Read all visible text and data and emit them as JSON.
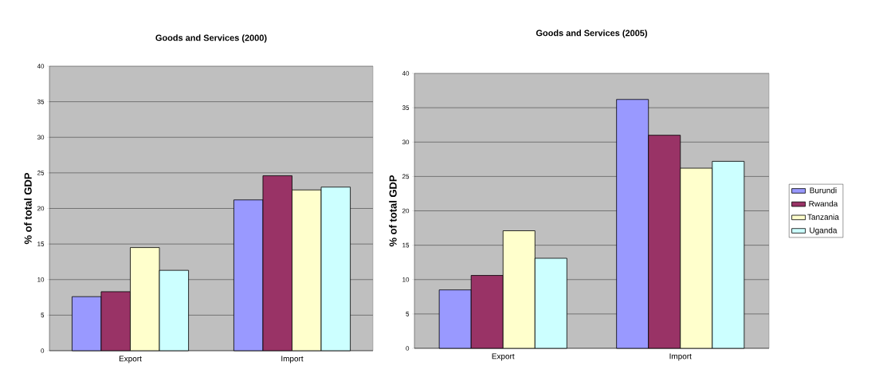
{
  "chart_data": [
    {
      "type": "bar",
      "title": "Goods and Services (2000)",
      "ylabel": "% of total GDP",
      "categories": [
        "Export",
        "Import"
      ],
      "series": [
        {
          "color": "#9999ff",
          "values": [
            7.6,
            21.2
          ]
        },
        {
          "color": "#993366",
          "values": [
            8.3,
            24.6
          ]
        },
        {
          "color": "#ffffcc",
          "values": [
            14.5,
            22.6
          ]
        },
        {
          "color": "#ccffff",
          "values": [
            11.3,
            23.0
          ]
        }
      ],
      "ylim": [
        0,
        40
      ],
      "yticks": [
        0,
        5,
        10,
        15,
        20,
        25,
        30,
        35,
        40
      ],
      "grid": "y"
    },
    {
      "type": "bar",
      "title": "Goods and Services (2005)",
      "ylabel": "% of total GDP",
      "categories": [
        "Export",
        "Import"
      ],
      "series": [
        {
          "name": "Burundi",
          "color": "#9999ff",
          "values": [
            8.5,
            36.2
          ]
        },
        {
          "name": "Rwanda",
          "color": "#993366",
          "values": [
            10.6,
            31.0
          ]
        },
        {
          "name": "Tanzania",
          "color": "#ffffcc",
          "values": [
            17.1,
            26.2
          ]
        },
        {
          "name": "Uganda",
          "color": "#ccffff",
          "values": [
            13.1,
            27.2
          ]
        }
      ],
      "ylim": [
        0,
        40
      ],
      "yticks": [
        0,
        5,
        10,
        15,
        20,
        25,
        30,
        35,
        40
      ],
      "grid": "y",
      "legend": "right"
    }
  ]
}
